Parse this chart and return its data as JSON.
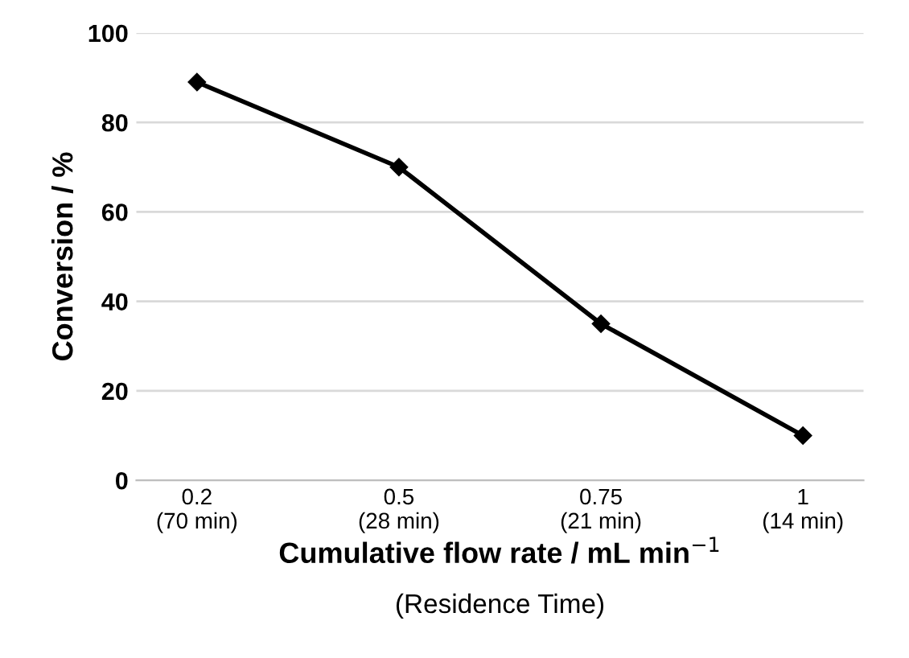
{
  "chart_data": {
    "type": "line",
    "xlabel": "Cumulative flow rate / mL min$^{−1}$",
    "ylabel": "Conversion / %",
    "annotations": [
      "(Residence Time)"
    ],
    "categories": [
      "0.2\n(70 min)",
      "0.5\n(28 min)",
      "0.75\n(21 min)",
      "1\n(14 min)"
    ],
    "series": [
      {
        "color": "#000000",
        "values": [
          89,
          70,
          35,
          10
        ]
      }
    ],
    "ylim": [
      0,
      100
    ],
    "yticks": [
      0,
      20,
      40,
      60,
      80,
      100
    ],
    "grid": "y",
    "marker": "diamond",
    "line_style": "solid",
    "legend": false
  }
}
